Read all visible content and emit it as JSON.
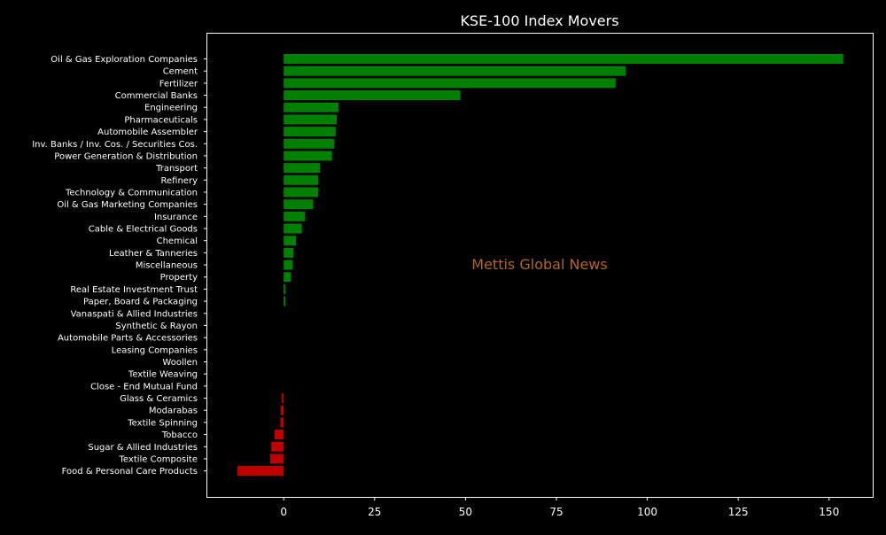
{
  "chart_data": {
    "type": "bar",
    "orientation": "horizontal",
    "title": "KSE-100 Index Movers",
    "xlabel": "",
    "ylabel": "",
    "watermark": "Mettis Global News",
    "xlim": [
      -21,
      162
    ],
    "xticks": [
      0,
      25,
      50,
      75,
      100,
      125,
      150
    ],
    "grid": false,
    "legend": "none",
    "colors": {
      "background": "#000000",
      "positive": "#008000",
      "negative": "#c00000",
      "axes": "#ffffff",
      "text": "#ffffff",
      "watermark": "#b5651d"
    },
    "categories": [
      "Oil & Gas Exploration Companies",
      "Cement",
      "Fertilizer",
      "Commercial Banks",
      "Engineering",
      "Pharmaceuticals",
      "Automobile Assembler",
      "Inv. Banks / Inv. Cos. / Securities Cos.",
      "Power Generation & Distribution",
      "Transport",
      "Refinery",
      "Technology & Communication",
      "Oil & Gas Marketing Companies",
      "Insurance",
      "Cable & Electrical Goods",
      "Chemical",
      "Leather & Tanneries",
      "Miscellaneous",
      "Property",
      "Real Estate Investment Trust",
      "Paper, Board & Packaging",
      "Vanaspati & Allied Industries",
      "Synthetic & Rayon",
      "Automobile Parts & Accessories",
      "Leasing Companies",
      "Woollen",
      "Textile Weaving",
      "Close - End Mutual Fund",
      "Glass & Ceramics",
      "Modarabas",
      "Textile Spinning",
      "Tobacco",
      "Sugar & Allied Industries",
      "Textile Composite",
      "Food & Personal Care Products"
    ],
    "values": [
      153.9,
      94.1,
      91.3,
      48.6,
      15.1,
      14.6,
      14.3,
      13.9,
      13.3,
      10.0,
      9.5,
      9.5,
      8.1,
      5.9,
      5.0,
      3.4,
      2.7,
      2.5,
      2.0,
      0.5,
      0.5,
      0.0,
      0.0,
      0.0,
      0.0,
      0.0,
      0.0,
      0.0,
      -0.5,
      -0.8,
      -0.9,
      -2.5,
      -3.4,
      -3.7,
      -12.7
    ]
  }
}
